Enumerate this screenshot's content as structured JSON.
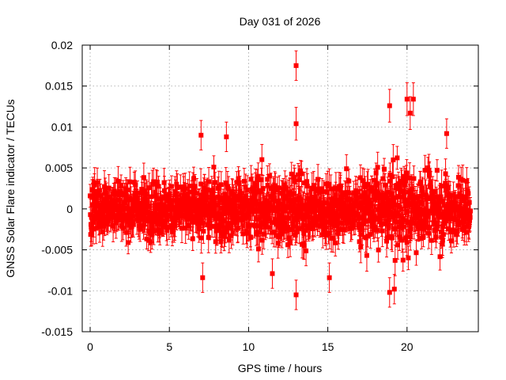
{
  "chart_data": {
    "type": "scatter",
    "title": "Day 031 of 2026",
    "xlabel": "GPS time / hours",
    "ylabel": "GNSS Solar Flare indicator / TECUs",
    "xlim": [
      -0.5,
      24.5
    ],
    "ylim": [
      -0.015,
      0.02
    ],
    "x_ticks": [
      0,
      5,
      10,
      15,
      20
    ],
    "x_tick_labels": [
      "0",
      "5",
      "10",
      "15",
      "20"
    ],
    "y_ticks": [
      -0.015,
      -0.01,
      -0.005,
      0,
      0.005,
      0.01,
      0.015,
      0.02
    ],
    "y_tick_labels": [
      "-0.015",
      "-0.01",
      "-0.005",
      "0",
      "0.005",
      "0.01",
      "0.015",
      "0.02"
    ],
    "grid": true,
    "marker": "square",
    "error_bars": true,
    "color": "#ff0000",
    "series": [
      {
        "name": "indicator",
        "x_range": [
          0,
          24
        ],
        "n_points": 1440,
        "typical_error": 0.0015,
        "envelope": [
          {
            "x": 0,
            "spread": 0.0038
          },
          {
            "x": 4,
            "spread": 0.0042
          },
          {
            "x": 8,
            "spread": 0.0048
          },
          {
            "x": 12,
            "spread": 0.0052
          },
          {
            "x": 16,
            "spread": 0.0046
          },
          {
            "x": 18,
            "spread": 0.0052
          },
          {
            "x": 20,
            "spread": 0.0062
          },
          {
            "x": 22,
            "spread": 0.0055
          },
          {
            "x": 24,
            "spread": 0.0042
          }
        ],
        "notable_points": [
          {
            "x": 13.0,
            "y": 0.0175,
            "err": 0.0018
          },
          {
            "x": 13.0,
            "y": 0.0104,
            "err": 0.002
          },
          {
            "x": 13.0,
            "y": -0.0105,
            "err": 0.0018
          },
          {
            "x": 18.9,
            "y": 0.0126,
            "err": 0.002
          },
          {
            "x": 20.0,
            "y": 0.0134,
            "err": 0.002
          },
          {
            "x": 20.4,
            "y": 0.0134,
            "err": 0.002
          },
          {
            "x": 20.2,
            "y": 0.0117,
            "err": 0.002
          },
          {
            "x": 18.9,
            "y": -0.0102,
            "err": 0.0018
          },
          {
            "x": 19.2,
            "y": -0.0098,
            "err": 0.0018
          },
          {
            "x": 7.0,
            "y": 0.009,
            "err": 0.0018
          },
          {
            "x": 8.6,
            "y": 0.0088,
            "err": 0.0018
          },
          {
            "x": 7.1,
            "y": -0.0084,
            "err": 0.0018
          },
          {
            "x": 15.1,
            "y": -0.0084,
            "err": 0.0018
          },
          {
            "x": 11.5,
            "y": -0.0079,
            "err": 0.0018
          },
          {
            "x": 22.5,
            "y": 0.0092,
            "err": 0.0018
          }
        ]
      }
    ]
  }
}
